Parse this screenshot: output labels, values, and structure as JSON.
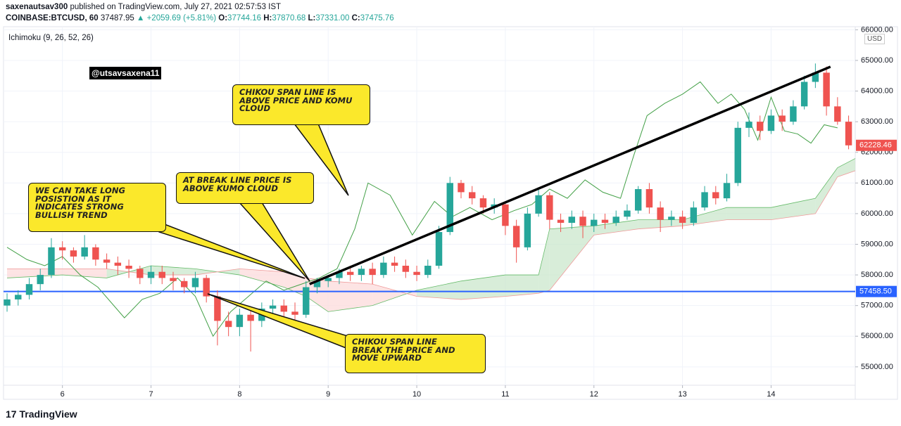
{
  "header": {
    "line1_user": "saxenautsav300",
    "line1_rest": "published on TradingView.com, July 27, 2021 02:57:53 IST",
    "symbol": "COINBASE:BTCUSD, 60",
    "last": "37487.95",
    "change": "▲ +2059.69 (+5.81%)",
    "o_label": "O:",
    "o": "37744.16",
    "h_label": "H:",
    "h": "37870.68",
    "l_label": "L:",
    "l": "37331.00",
    "c_label": "C:",
    "c": "37475.76"
  },
  "indicator": "Ichimoku (9, 26, 52, 26)",
  "watermark": "@utsavsaxena11",
  "currency": "USD",
  "logo": "17 TradingView",
  "callouts": [
    {
      "lines": [
        "CHIKOU SPAN LINE IS",
        "ABOVE PRICE AND KOMU",
        "CLOUD"
      ]
    },
    {
      "lines": [
        "AT BREAK LINE PRICE IS",
        "ABOVE KUMO CLOUD"
      ]
    },
    {
      "lines": [
        "WE CAN TAKE LONG",
        "POSISTION AS IT",
        "INDICATES STRONG",
        "BULLISH TREND"
      ]
    },
    {
      "lines": [
        "CHIKOU SPAN LINE",
        "BREAK THE PRICE AND",
        "MOVE UPWARD"
      ]
    }
  ],
  "chart_data": {
    "type": "candlestick",
    "xlim": [
      5.335,
      14.95
    ],
    "xticks": [
      6,
      7,
      8,
      9,
      10,
      11,
      12,
      13,
      14
    ],
    "ylim": [
      54400,
      66100
    ],
    "yticks": [
      {
        "value": 55000,
        "label": "55000.00"
      },
      {
        "value": 56000,
        "label": "56000.00"
      },
      {
        "value": 57000,
        "label": "57000.00"
      },
      {
        "value": 58000,
        "label": "58000.00"
      },
      {
        "value": 59000,
        "label": "59000.00"
      },
      {
        "value": 60000,
        "label": "60000.00"
      },
      {
        "value": 61000,
        "label": "61000.00"
      },
      {
        "value": 62000,
        "label": "62000.00"
      },
      {
        "value": 63000,
        "label": "63000.00"
      },
      {
        "value": 64000,
        "label": "64000.00"
      },
      {
        "value": 65000,
        "label": "65000.00"
      },
      {
        "value": 66000,
        "label": "66000.00"
      }
    ],
    "grid": true,
    "up_color": "#26a69a",
    "down_color": "#ef5350",
    "x": [
      5.375,
      5.5,
      5.625,
      5.75,
      5.875,
      6.0,
      6.125,
      6.25,
      6.375,
      6.5,
      6.625,
      6.75,
      6.875,
      7.0,
      7.125,
      7.25,
      7.375,
      7.5,
      7.625,
      7.75,
      7.875,
      8.0,
      8.125,
      8.25,
      8.375,
      8.5,
      8.625,
      8.75,
      8.875,
      9.0,
      9.125,
      9.25,
      9.375,
      9.5,
      9.625,
      9.75,
      9.875,
      10.0,
      10.125,
      10.25,
      10.375,
      10.5,
      10.625,
      10.75,
      10.875,
      11.0,
      11.125,
      11.25,
      11.375,
      11.5,
      11.625,
      11.75,
      11.875,
      12.0,
      12.125,
      12.25,
      12.375,
      12.5,
      12.625,
      12.75,
      12.875,
      13.0,
      13.125,
      13.25,
      13.375,
      13.5,
      13.625,
      13.75,
      13.875,
      14.0,
      14.125,
      14.25,
      14.375,
      14.5,
      14.625,
      14.75,
      14.875
    ],
    "open": [
      57000,
      57200,
      57350,
      57700,
      58000,
      58900,
      58800,
      58600,
      58900,
      58500,
      58400,
      58300,
      58200,
      57900,
      58100,
      57900,
      57800,
      57600,
      57900,
      57300,
      56500,
      56300,
      56700,
      56500,
      56900,
      57000,
      56800,
      56700,
      57600,
      57800,
      57900,
      58100,
      58000,
      58200,
      58000,
      58400,
      58300,
      58100,
      58000,
      58300,
      59400,
      61000,
      60700,
      60500,
      60200,
      60300,
      59600,
      58900,
      60000,
      60600,
      59800,
      59700,
      59900,
      59600,
      59800,
      59700,
      59900,
      60100,
      60800,
      60200,
      59800,
      59900,
      59700,
      60200,
      60700,
      60500,
      61000,
      62800,
      63000,
      62700,
      63200,
      63000,
      63500,
      64300,
      64600,
      63500,
      63000
    ],
    "high": [
      57400,
      57500,
      57900,
      58200,
      59200,
      59100,
      58900,
      59300,
      59000,
      58700,
      58600,
      58500,
      58300,
      58300,
      58300,
      58100,
      57900,
      58100,
      58000,
      57500,
      56800,
      56900,
      56900,
      57100,
      57200,
      57200,
      57100,
      57800,
      57900,
      58000,
      58200,
      58300,
      58300,
      58400,
      58600,
      58600,
      58500,
      58300,
      58500,
      59600,
      61200,
      61100,
      60900,
      60600,
      60500,
      60400,
      59800,
      60200,
      60800,
      60700,
      60000,
      60100,
      60100,
      60000,
      60000,
      60100,
      60300,
      60900,
      61000,
      60400,
      60100,
      60100,
      60400,
      60900,
      60900,
      61300,
      63000,
      63300,
      63200,
      63400,
      63400,
      63700,
      64500,
      64900,
      64800,
      63800,
      63200
    ],
    "low": [
      56800,
      57000,
      57200,
      57500,
      57900,
      58500,
      58400,
      58500,
      58300,
      58200,
      58000,
      57900,
      57700,
      57700,
      57700,
      57500,
      57400,
      57400,
      57100,
      55700,
      56000,
      56000,
      55500,
      56300,
      56700,
      56500,
      56400,
      56600,
      57400,
      57600,
      57700,
      57800,
      57800,
      57700,
      57900,
      58100,
      57900,
      57800,
      57900,
      58200,
      59300,
      60500,
      60300,
      60000,
      60000,
      59300,
      58400,
      58800,
      59900,
      59500,
      59400,
      59500,
      59200,
      59400,
      59500,
      59600,
      59800,
      60000,
      60000,
      59400,
      59600,
      59500,
      59600,
      60100,
      60300,
      60400,
      60900,
      62500,
      62400,
      62600,
      62700,
      62900,
      63400,
      64100,
      63200,
      62900,
      62100
    ],
    "close": [
      57200,
      57350,
      57700,
      58000,
      58900,
      58800,
      58600,
      58900,
      58500,
      58400,
      58300,
      58200,
      57900,
      58100,
      57900,
      57800,
      57600,
      57900,
      57300,
      56500,
      56300,
      56700,
      56500,
      56900,
      57000,
      56800,
      56700,
      57600,
      57800,
      57900,
      58100,
      58000,
      58200,
      58000,
      58400,
      58300,
      58100,
      58000,
      58300,
      59400,
      61000,
      60700,
      60500,
      60200,
      60300,
      59600,
      58900,
      60000,
      60600,
      59800,
      59700,
      59900,
      59600,
      59800,
      59700,
      59900,
      60100,
      60800,
      60200,
      59800,
      59900,
      59700,
      60200,
      60700,
      60500,
      61000,
      62800,
      63000,
      62700,
      63200,
      63000,
      63500,
      64300,
      64600,
      63500,
      63000,
      62228.46
    ],
    "last_label": "62228.46",
    "last_color": "#ef5350",
    "hline": {
      "value": 57458.5,
      "label": "57458.50",
      "color": "#2962ff"
    },
    "chikou": {
      "color": "#43a047",
      "x": [
        5.375,
        5.6,
        5.8,
        6.0,
        6.2,
        6.4,
        6.7,
        6.9,
        7.1,
        7.3,
        7.5,
        7.7,
        7.9,
        8.1,
        8.3,
        8.5,
        8.7,
        8.9,
        9.1,
        9.3,
        9.45,
        9.7,
        9.95,
        10.2,
        10.4,
        10.6,
        10.85,
        11.1,
        11.3,
        11.5,
        11.7,
        11.9,
        12.1,
        12.3,
        12.45,
        12.6,
        12.8,
        13.0,
        13.2,
        13.4,
        13.55,
        13.7,
        13.85,
        14.0,
        14.15,
        14.3,
        14.45,
        14.6,
        14.75
      ],
      "values": [
        58900,
        58500,
        58300,
        58600,
        58000,
        57600,
        56600,
        57200,
        57400,
        57900,
        57300,
        56000,
        56800,
        57300,
        57800,
        57500,
        57700,
        57900,
        58200,
        59500,
        61000,
        60600,
        59300,
        60400,
        59900,
        60200,
        59800,
        60100,
        60300,
        60800,
        60500,
        61100,
        60700,
        60500,
        61900,
        63200,
        63600,
        63900,
        64300,
        63600,
        63900,
        63400,
        62400,
        63800,
        62700,
        62600,
        62300,
        62900,
        62800
      ]
    },
    "cloud": {
      "x": [
        5.375,
        6.0,
        6.5,
        7.0,
        7.5,
        8.0,
        8.5,
        8.75,
        9.0,
        9.5,
        10.0,
        10.5,
        11.0,
        11.375,
        11.5,
        12.0,
        12.5,
        13.0,
        13.5,
        14.0,
        14.5,
        14.75,
        14.95
      ],
      "span_a": [
        57900,
        58000,
        57900,
        58300,
        58200,
        58000,
        57600,
        57300,
        56800,
        57000,
        57500,
        57800,
        58000,
        58000,
        59500,
        59600,
        59800,
        59800,
        60200,
        60200,
        60500,
        61500,
        61800
      ],
      "span_b": [
        58200,
        58200,
        58200,
        58000,
        58000,
        58200,
        58100,
        57900,
        57800,
        57700,
        57300,
        57200,
        57300,
        57400,
        57500,
        59300,
        59500,
        59600,
        59800,
        59800,
        60000,
        61200,
        61400
      ],
      "a_color": "#66bb6a",
      "b_color": "#ef9a9a",
      "a_fill": "#c8e6c9",
      "b_fill": "#fcd9d9"
    },
    "trend_line": {
      "color": "#000000",
      "x": [
        8.79,
        14.67
      ],
      "values": [
        57700,
        64794
      ]
    }
  }
}
